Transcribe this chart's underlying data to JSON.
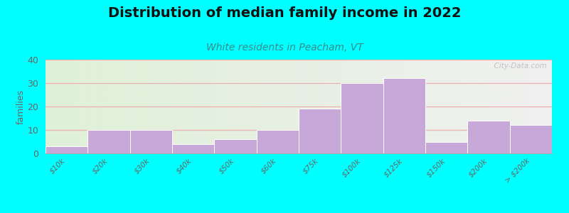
{
  "title": "Distribution of median family income in 2022",
  "subtitle": "White residents in Peacham, VT",
  "ylabel": "families",
  "categories": [
    "$10k",
    "$20k",
    "$30k",
    "$40k",
    "$50k",
    "$60k",
    "$75k",
    "$100k",
    "$125k",
    "$150k",
    "$200k",
    "> $200k"
  ],
  "values": [
    3,
    10,
    10,
    4,
    6,
    10,
    19,
    30,
    32,
    5,
    14,
    12
  ],
  "bar_color": "#C8A8D8",
  "bar_edgecolor": "#ffffff",
  "ylim": [
    0,
    40
  ],
  "yticks": [
    0,
    10,
    20,
    30,
    40
  ],
  "background_outer": "#00FFFF",
  "background_plot_left": "#dff0d8",
  "background_plot_right": "#f0f0f0",
  "title_fontsize": 14,
  "subtitle_fontsize": 10,
  "subtitle_color": "#3d8a8a",
  "watermark": "  City-Data.com",
  "grid_color": "#f0b0b0",
  "ylabel_fontsize": 9,
  "tick_label_color": "#666666"
}
